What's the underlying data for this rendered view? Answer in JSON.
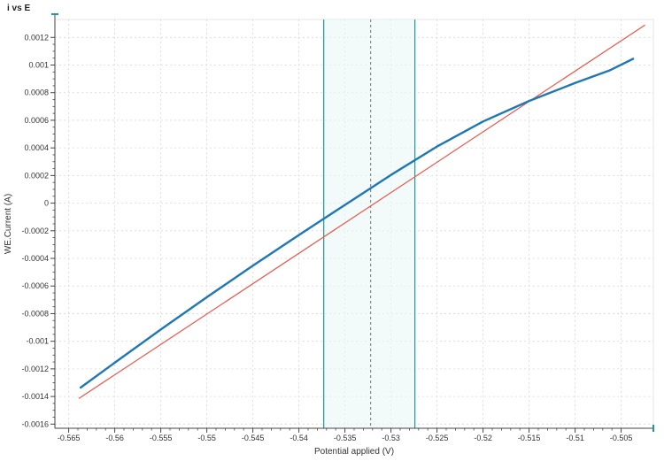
{
  "window": {
    "title": "i vs E"
  },
  "colors": {
    "measured": "#1f77b4",
    "fit": "#e8564a",
    "region_border": "#1a9a9a",
    "region_fill": "#eaf6f6",
    "grid": "#d8d8d8",
    "axis": "#444444"
  },
  "chart_data": {
    "type": "line",
    "title": "i vs E",
    "xlabel": "Potential applied (V)",
    "ylabel": "WE.Current (A)",
    "xlim": [
      -0.5665,
      -0.5015
    ],
    "ylim": [
      -0.00163,
      0.00133
    ],
    "x_ticks": [
      -0.565,
      -0.56,
      -0.555,
      -0.55,
      -0.545,
      -0.54,
      -0.535,
      -0.53,
      -0.525,
      -0.52,
      -0.515,
      -0.51,
      -0.505
    ],
    "x_tick_labels": [
      "-0.565",
      "-0.56",
      "-0.555",
      "-0.55",
      "-0.545",
      "-0.54",
      "-0.535",
      "-0.53",
      "-0.525",
      "-0.52",
      "-0.515",
      "-0.51",
      "-0.505"
    ],
    "y_ticks": [
      0.0012,
      0.001,
      0.0008,
      0.0006,
      0.0004,
      0.0002,
      0,
      -0.0002,
      -0.0004,
      -0.0006,
      -0.0008,
      -0.001,
      -0.0012,
      -0.0014,
      -0.0016
    ],
    "y_tick_labels": [
      "0.0012",
      "0.001",
      "0.0008",
      "0.0006",
      "0.0004",
      "0.0002",
      "0",
      "-0.0002",
      "-0.0004",
      "-0.0006",
      "-0.0008",
      "-0.001",
      "-0.0012",
      "-0.0014",
      "-0.0016"
    ],
    "grid": true,
    "series": [
      {
        "role": "measured",
        "points": [
          [
            -0.5637,
            -0.001335
          ],
          [
            -0.56,
            -0.001155
          ],
          [
            -0.555,
            -0.000915
          ],
          [
            -0.55,
            -0.000681
          ],
          [
            -0.545,
            -0.000453
          ],
          [
            -0.54,
            -0.000231
          ],
          [
            -0.535,
            -1.3e-05
          ],
          [
            -0.53,
            0.000204
          ],
          [
            -0.525,
            0.00041
          ],
          [
            -0.52,
            0.000591
          ],
          [
            -0.515,
            0.00074
          ],
          [
            -0.51,
            0.00087
          ],
          [
            -0.5063,
            0.00096
          ],
          [
            -0.5037,
            0.001045
          ]
        ]
      },
      {
        "role": "fit",
        "points": [
          [
            -0.5639,
            -0.001415
          ],
          [
            -0.5024,
            0.00129
          ]
        ]
      }
    ],
    "region": {
      "x_start": -0.5373,
      "x_end": -0.5274,
      "center": -0.5322
    }
  }
}
